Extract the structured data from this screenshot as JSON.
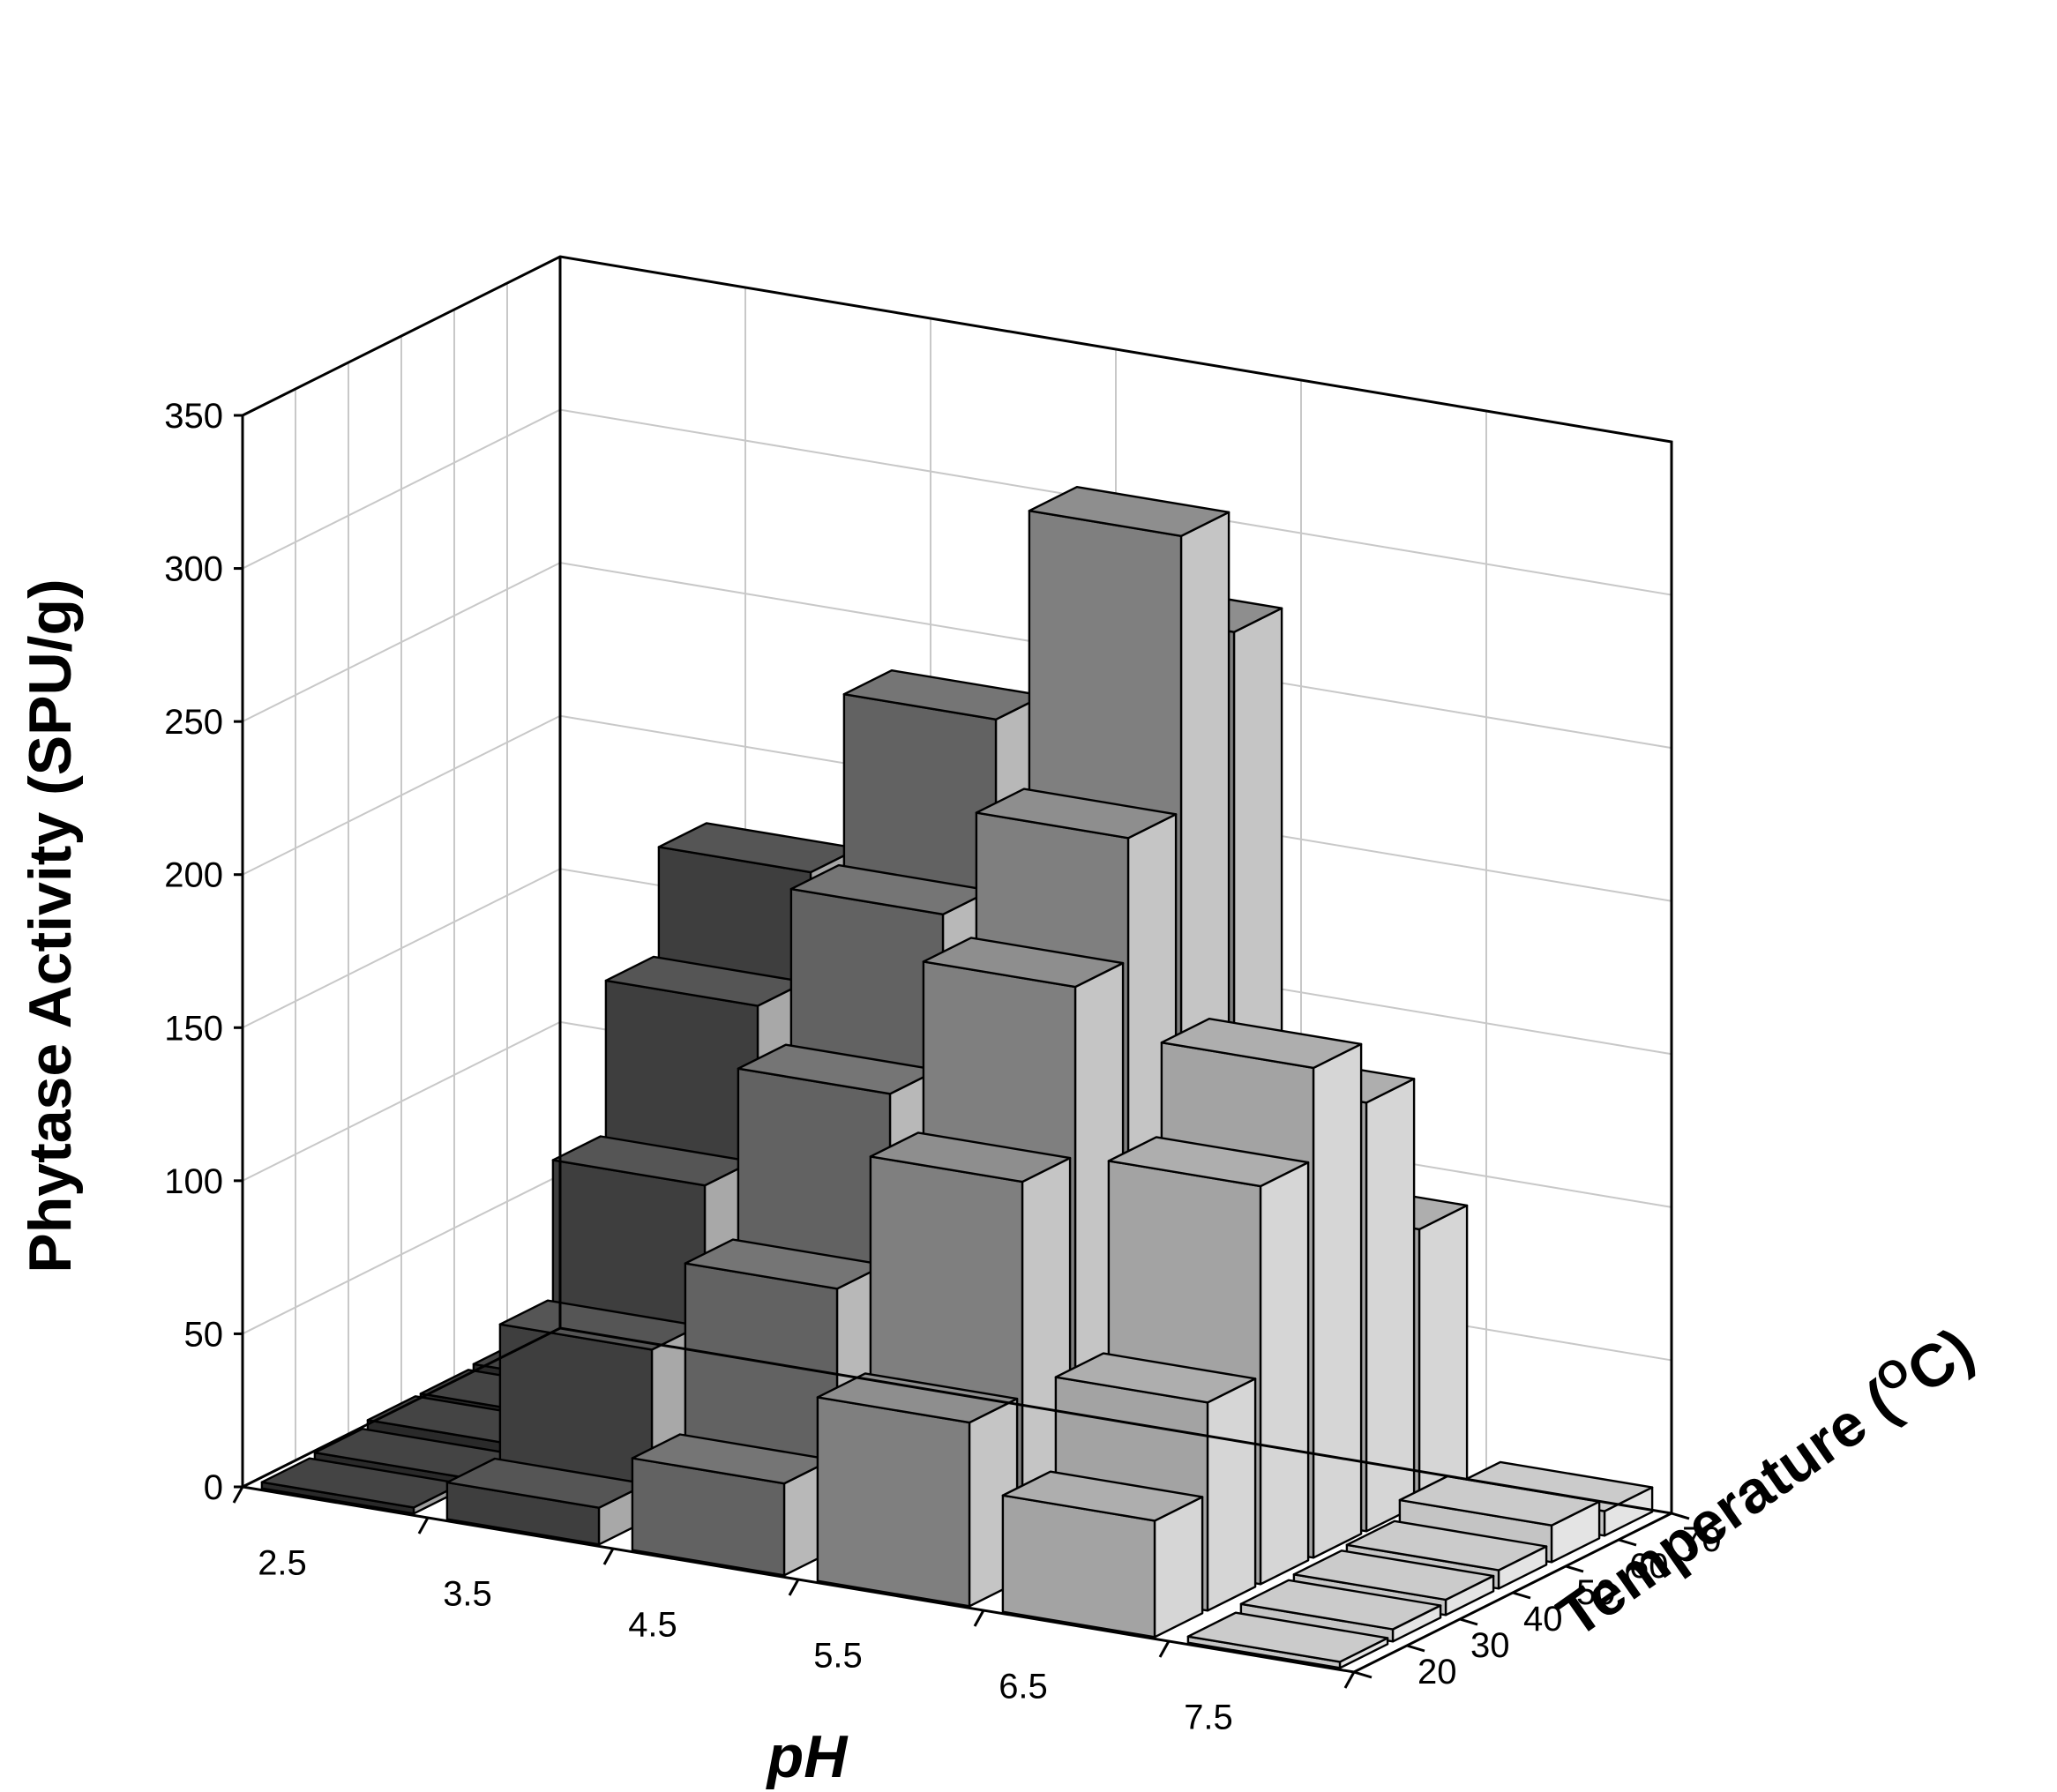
{
  "chart_data": {
    "type": "bar3d",
    "title": "",
    "xlabel": "pH",
    "ylabel": "Temperature (",
    "ylabel_sup": "O",
    "ylabel_end": "C)",
    "zlabel": "Phytase Activity (SPU/g)",
    "x_categories": [
      "2.5",
      "3.5",
      "4.5",
      "5.5",
      "6.5",
      "7.5"
    ],
    "y_categories": [
      "20",
      "30",
      "40",
      "50",
      "60",
      "70"
    ],
    "z_ticks": [
      "0",
      "50",
      "100",
      "150",
      "200",
      "250",
      "300",
      "350"
    ],
    "zlim": [
      0,
      350
    ],
    "values": [
      [
        2,
        12,
        30,
        60,
        38,
        2
      ],
      [
        3,
        55,
        85,
        130,
        68,
        4
      ],
      [
        5,
        100,
        140,
        185,
        130,
        5
      ],
      [
        5,
        150,
        190,
        225,
        160,
        6
      ],
      [
        6,
        185,
        245,
        315,
        140,
        12
      ],
      [
        6,
        70,
        195,
        275,
        90,
        8
      ]
    ],
    "values_note_rows": "rows follow y_categories (Temperature), columns follow x_categories (pH)",
    "colors": [
      "#2a2a2a",
      "#3e3e3e",
      "#626262",
      "#7f7f7f",
      "#a3a3a3",
      "#c4c4c4"
    ],
    "grid": true
  }
}
